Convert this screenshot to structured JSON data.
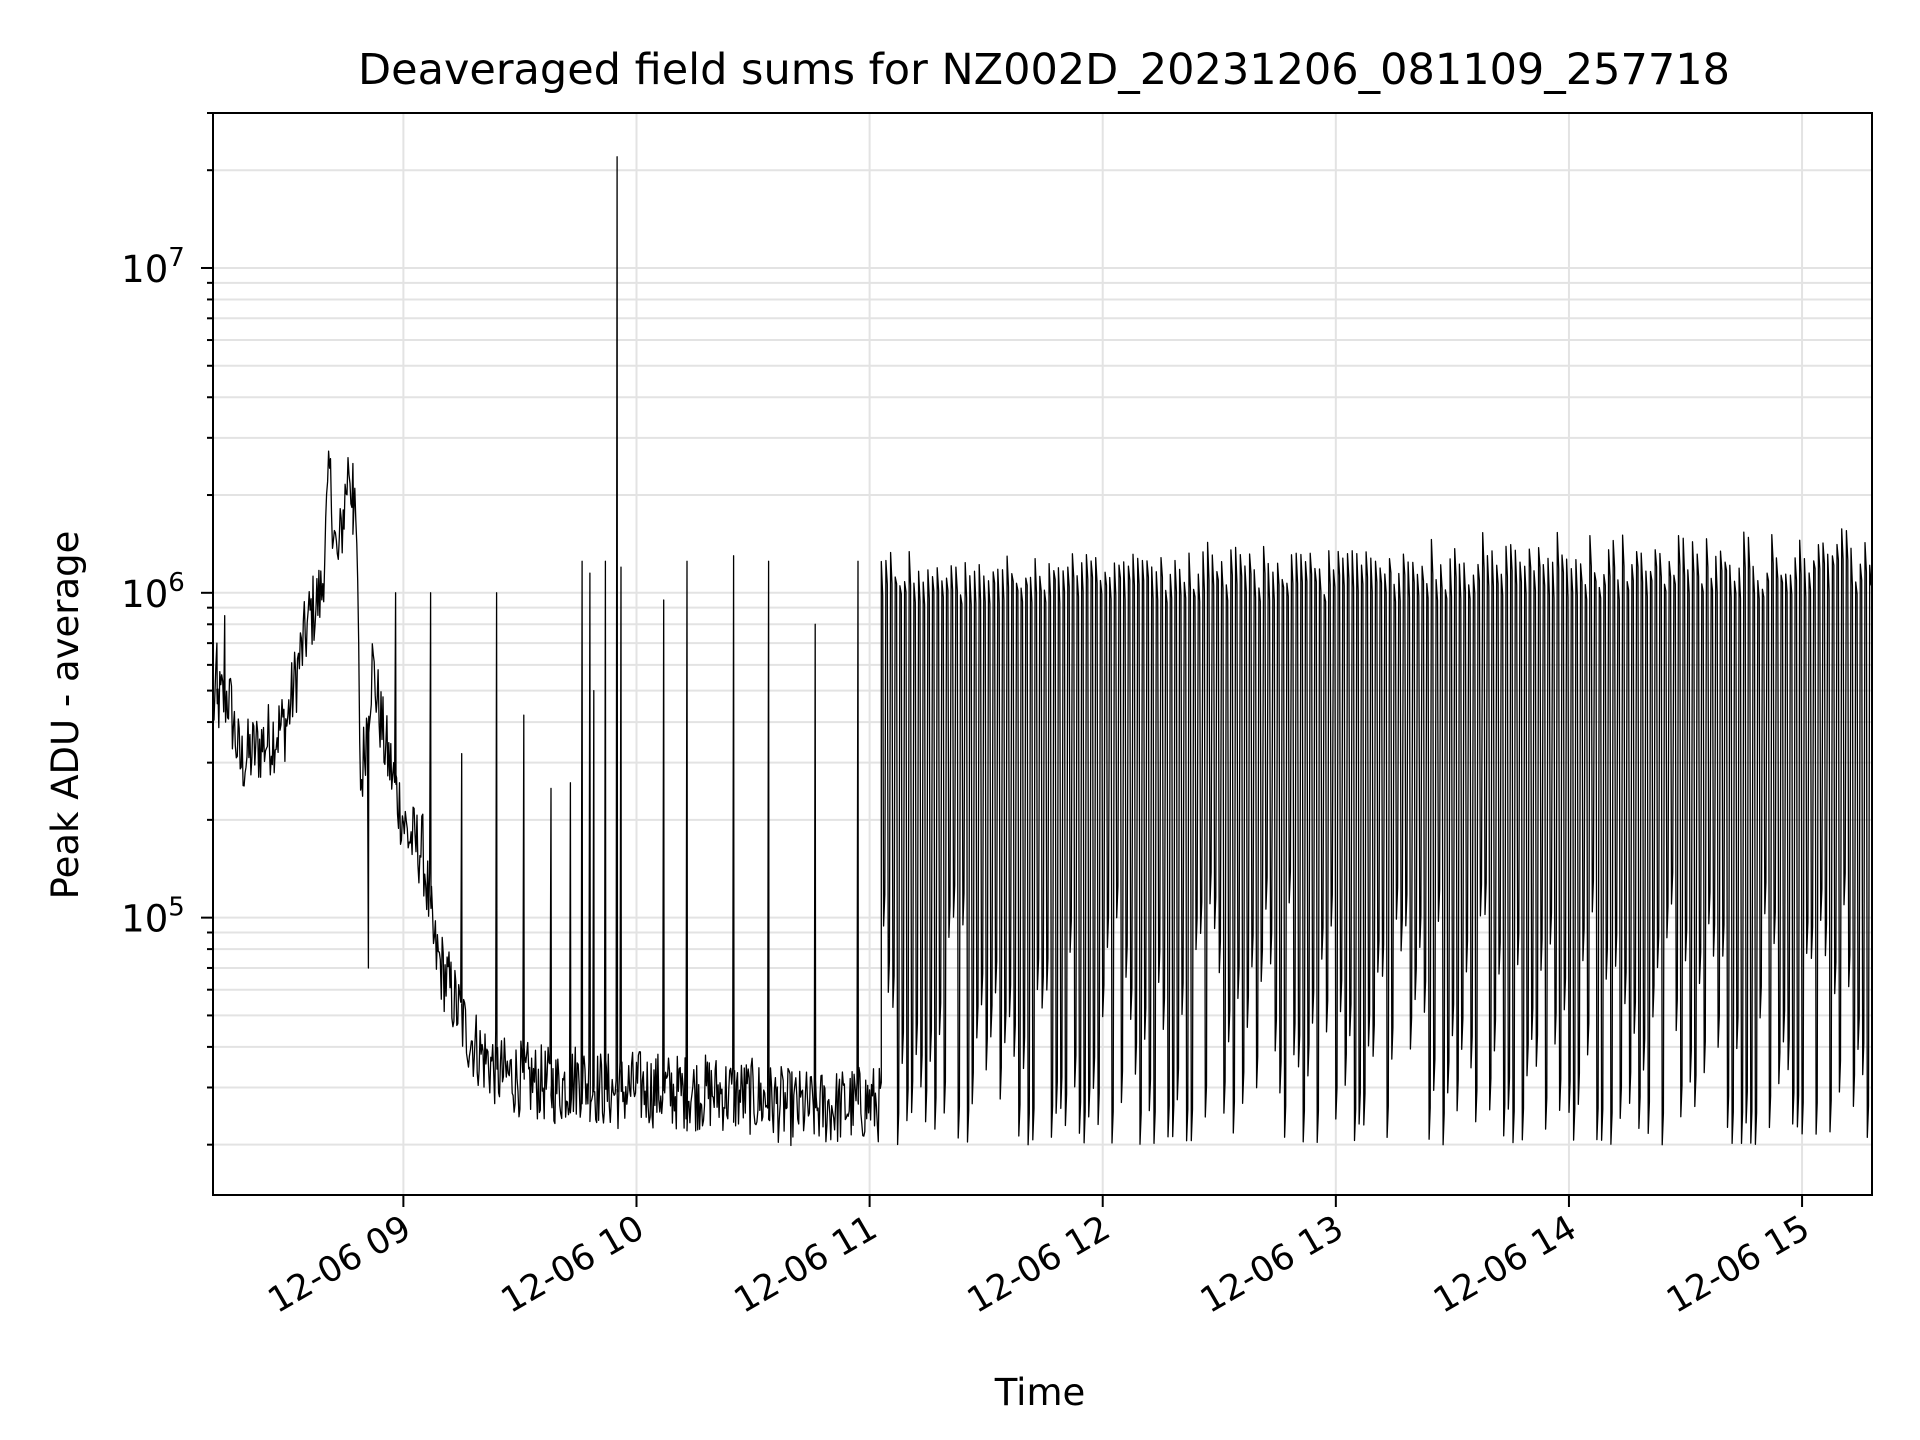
{
  "chart_data": {
    "type": "line",
    "title": "Deaveraged field sums for NZ002D_20231206_081109_257718",
    "xlabel": "Time",
    "ylabel": "Peak ADU - average",
    "x_axis": {
      "type": "time",
      "range": [
        "2023-12-06 08:11",
        "2023-12-06 15:18"
      ],
      "tick_values": [
        "2023-12-06 09:00",
        "2023-12-06 10:00",
        "2023-12-06 11:00",
        "2023-12-06 12:00",
        "2023-12-06 13:00",
        "2023-12-06 14:00",
        "2023-12-06 15:00"
      ],
      "tick_labels": [
        "12-06 09",
        "12-06 10",
        "12-06 11",
        "12-06 12",
        "12-06 13",
        "12-06 14",
        "12-06 15"
      ],
      "tick_label_rotation_deg": 30
    },
    "y_axis": {
      "scale": "log",
      "range": [
        14000,
        30000000
      ],
      "tick_values": [
        100000,
        1000000,
        10000000
      ],
      "tick_labels": [
        {
          "base": "10",
          "exp": "5"
        },
        {
          "base": "10",
          "exp": "6"
        },
        {
          "base": "10",
          "exp": "7"
        }
      ]
    },
    "grid": true,
    "series": [
      {
        "color": "#000000",
        "points": [
          [
            "2023-12-06 08:11",
            450000
          ],
          [
            "2023-12-06 08:15",
            480000
          ],
          [
            "2023-12-06 08:18",
            300000
          ],
          [
            "2023-12-06 08:22",
            330000
          ],
          [
            "2023-12-06 08:26",
            360000
          ],
          [
            "2023-12-06 08:30",
            400000
          ],
          [
            "2023-12-06 08:33",
            600000
          ],
          [
            "2023-12-06 08:36",
            850000
          ],
          [
            "2023-12-06 08:39",
            1000000
          ],
          [
            "2023-12-06 08:41",
            2300000
          ],
          [
            "2023-12-06 08:43",
            1200000
          ],
          [
            "2023-12-06 08:46",
            2500000
          ],
          [
            "2023-12-06 08:48",
            1400000
          ],
          [
            "2023-12-06 08:49",
            250000
          ],
          [
            "2023-12-06 08:52",
            600000
          ],
          [
            "2023-12-06 08:55",
            350000
          ],
          [
            "2023-12-06 08:58",
            250000
          ],
          [
            "2023-12-06 09:01",
            180000
          ],
          [
            "2023-12-06 09:05",
            160000
          ],
          [
            "2023-12-06 09:08",
            80000
          ],
          [
            "2023-12-06 09:12",
            60000
          ],
          [
            "2023-12-06 09:16",
            45000
          ],
          [
            "2023-12-06 09:20",
            38000
          ],
          [
            "2023-12-06 09:25",
            33000
          ],
          [
            "2023-12-06 09:30",
            32000
          ],
          [
            "2023-12-06 09:35",
            31000
          ],
          [
            "2023-12-06 09:40",
            30000
          ],
          [
            "2023-12-06 09:45",
            32000
          ],
          [
            "2023-12-06 09:50",
            30000
          ],
          [
            "2023-12-06 09:55",
            29000
          ],
          [
            "2023-12-06 10:00",
            30000
          ],
          [
            "2023-12-06 10:10",
            29000
          ],
          [
            "2023-12-06 10:20",
            29000
          ],
          [
            "2023-12-06 10:30",
            28000
          ],
          [
            "2023-12-06 10:40",
            26000
          ],
          [
            "2023-12-06 10:50",
            26000
          ],
          [
            "2023-12-06 11:00",
            27000
          ],
          [
            "2023-12-06 11:10",
            25000
          ],
          [
            "2023-12-06 11:20",
            24000
          ]
        ],
        "spikes": [
          [
            "2023-12-06 08:12",
            700000
          ],
          [
            "2023-12-06 08:14",
            850000
          ],
          [
            "2023-12-06 08:47",
            2500000
          ],
          [
            "2023-12-06 08:51",
            70000
          ],
          [
            "2023-12-06 08:58",
            1000000
          ],
          [
            "2023-12-06 09:07",
            1000000
          ],
          [
            "2023-12-06 09:15",
            320000
          ],
          [
            "2023-12-06 09:24",
            1000000
          ],
          [
            "2023-12-06 09:31",
            420000
          ],
          [
            "2023-12-06 09:38",
            250000
          ],
          [
            "2023-12-06 09:43",
            260000
          ],
          [
            "2023-12-06 09:46",
            1250000
          ],
          [
            "2023-12-06 09:48",
            1150000
          ],
          [
            "2023-12-06 09:49",
            500000
          ],
          [
            "2023-12-06 09:52",
            1250000
          ],
          [
            "2023-12-06 09:55",
            22000000
          ],
          [
            "2023-12-06 09:56",
            1200000
          ],
          [
            "2023-12-06 10:07",
            950000
          ],
          [
            "2023-12-06 10:13",
            1250000
          ],
          [
            "2023-12-06 10:25",
            1300000
          ],
          [
            "2023-12-06 10:34",
            1250000
          ],
          [
            "2023-12-06 10:46",
            800000
          ],
          [
            "2023-12-06 10:57",
            1250000
          ]
        ],
        "oscillation": {
          "start": "2023-12-06 11:03",
          "end": "2023-12-06 15:18",
          "period_minutes": 1.2,
          "high_range": [
            1000000,
            1500000
          ],
          "low_range": [
            20000,
            120000
          ]
        }
      }
    ]
  }
}
